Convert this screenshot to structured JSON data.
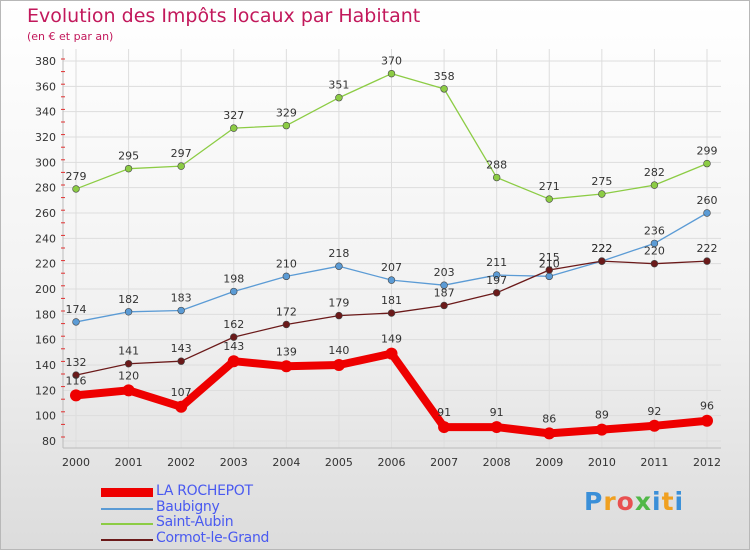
{
  "title": "Evolution des Impôts locaux par Habitant",
  "subtitle": "(en € et par an)",
  "brand": {
    "letters": [
      "P",
      "r",
      "o",
      "x",
      "i",
      "t",
      "i"
    ],
    "colors": [
      "#3a8fd8",
      "#f0a020",
      "#e85050",
      "#50b848",
      "#3a8fd8",
      "#f0a020",
      "#3a8fd8"
    ]
  },
  "chart_data": {
    "type": "line",
    "x": [
      "2000",
      "2001",
      "2002",
      "2003",
      "2004",
      "2005",
      "2006",
      "2007",
      "2008",
      "2009",
      "2010",
      "2011",
      "2012"
    ],
    "ylim": [
      80,
      380
    ],
    "yticks": [
      80,
      100,
      120,
      140,
      160,
      180,
      200,
      220,
      240,
      260,
      280,
      300,
      320,
      340,
      360,
      380
    ],
    "grid": true,
    "legend_position": "bottom-left",
    "series": [
      {
        "name": "LA ROCHEPOT",
        "color": "#ee0000",
        "weight": "thick",
        "values": [
          116,
          120,
          107,
          143,
          139,
          140,
          149,
          91,
          91,
          86,
          89,
          92,
          96
        ]
      },
      {
        "name": "Baubigny",
        "color": "#5b9bd5",
        "weight": "thin",
        "values": [
          174,
          182,
          183,
          198,
          210,
          218,
          207,
          203,
          211,
          210,
          222,
          236,
          260
        ]
      },
      {
        "name": "Saint-Aubin",
        "color": "#8ccc44",
        "weight": "thin",
        "values": [
          279,
          295,
          297,
          327,
          329,
          351,
          370,
          358,
          288,
          271,
          275,
          282,
          299
        ]
      },
      {
        "name": "Cormot-le-Grand",
        "color": "#6b1a1a",
        "weight": "thin",
        "values": [
          132,
          141,
          143,
          162,
          172,
          179,
          181,
          187,
          197,
          215,
          222,
          220,
          222
        ]
      }
    ]
  }
}
